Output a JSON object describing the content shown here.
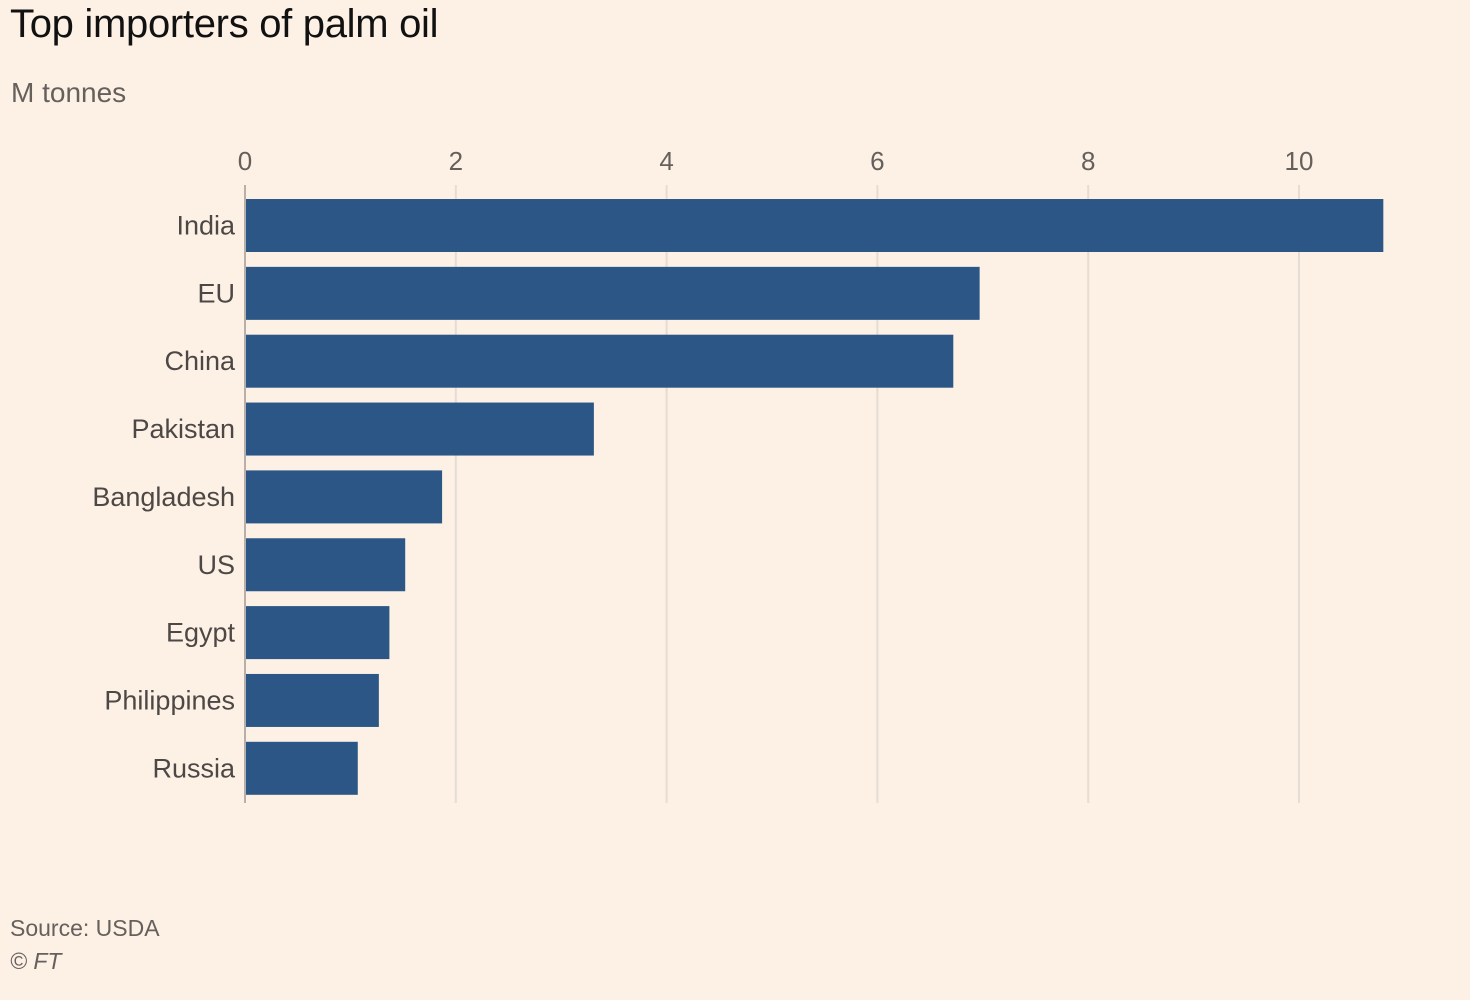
{
  "chart_data": {
    "type": "bar",
    "orientation": "horizontal",
    "title": "Top importers of palm oil",
    "subtitle": "M tonnes",
    "categories": [
      "India",
      "EU",
      "China",
      "Pakistan",
      "Bangladesh",
      "US",
      "Egypt",
      "Philippines",
      "Russia"
    ],
    "values": [
      10.8,
      6.97,
      6.72,
      3.31,
      1.87,
      1.52,
      1.37,
      1.27,
      1.07
    ],
    "xticks": [
      0,
      2,
      4,
      6,
      8,
      10
    ],
    "xlim": [
      0,
      10.8
    ],
    "grid": "vertical",
    "source": "Source: USDA",
    "credit": "© FT",
    "colors": {
      "bar": "#2C5685",
      "grid": "#E5DCD3",
      "background": "#FDF1E6"
    }
  }
}
